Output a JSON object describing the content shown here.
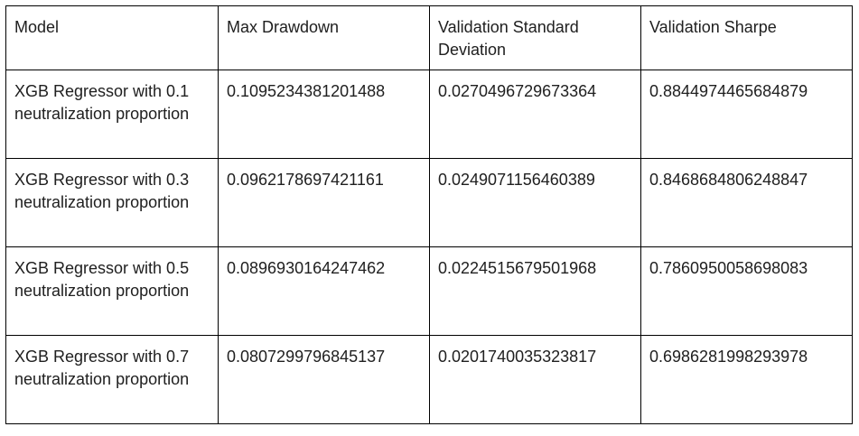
{
  "table": {
    "headers": [
      "Model",
      "Max Drawdown",
      "Validation Standard Deviation",
      "Validation Sharpe"
    ],
    "rows": [
      [
        "XGB Regressor with 0.1 neutralization proportion",
        "0.1095234381201488",
        "0.0270496729673364",
        "0.8844974465684879"
      ],
      [
        "XGB Regressor with 0.3 neutralization proportion",
        "0.0962178697421161",
        "0.0249071156460389",
        "0.8468684806248847"
      ],
      [
        "XGB Regressor with 0.5 neutralization proportion",
        "0.0896930164247462",
        "0.0224515679501968",
        "0.7860950058698083"
      ],
      [
        "XGB Regressor with 0.7 neutralization proportion",
        "0.0807299796845137",
        "0.0201740035323817",
        "0.6986281998293978"
      ]
    ]
  }
}
